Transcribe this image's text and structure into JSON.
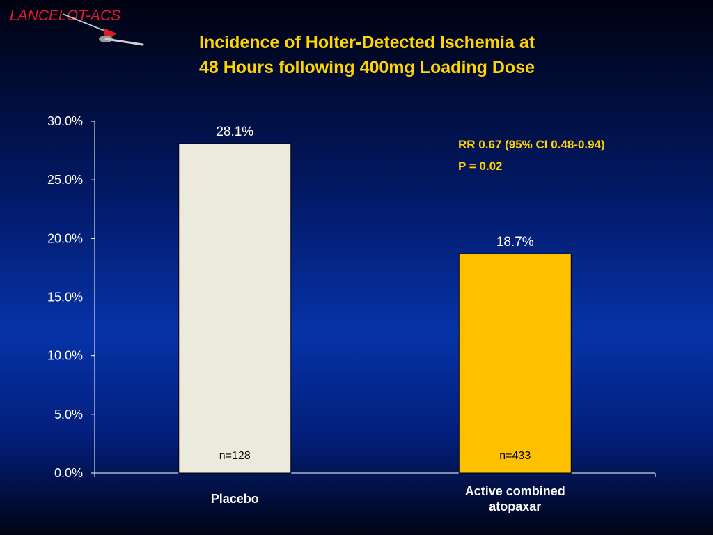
{
  "logo": {
    "text": "LANCELOT-ACS"
  },
  "title": {
    "line1": "Incidence of Holter-Detected Ischemia at",
    "line2": "48 Hours following 400mg Loading Dose"
  },
  "annotations": {
    "rr": "RR 0.67 (95% CI 0.48-0.94)",
    "p": "P = 0.02"
  },
  "colors": {
    "title": "#ffd400",
    "placebo_bar": "#ece9dd",
    "active_bar": "#ffc000",
    "text": "#ffffff"
  },
  "chart_data": {
    "type": "bar",
    "categories": [
      "Placebo",
      "Active combined atopaxar"
    ],
    "category_lines": [
      [
        "Placebo"
      ],
      [
        "Active combined",
        "atopaxar"
      ]
    ],
    "values": [
      28.1,
      18.7
    ],
    "value_labels": [
      "28.1%",
      "18.7%"
    ],
    "n_labels": [
      "n=128",
      "n=433"
    ],
    "bar_colors": [
      "#ece9dd",
      "#ffc000"
    ],
    "ylim": [
      0,
      30
    ],
    "yticks": [
      0,
      5,
      10,
      15,
      20,
      25,
      30
    ],
    "ytick_labels": [
      "0.0%",
      "5.0%",
      "10.0%",
      "15.0%",
      "20.0%",
      "25.0%",
      "30.0%"
    ],
    "grid": false,
    "legend": "none",
    "xlabel": "",
    "ylabel": ""
  }
}
